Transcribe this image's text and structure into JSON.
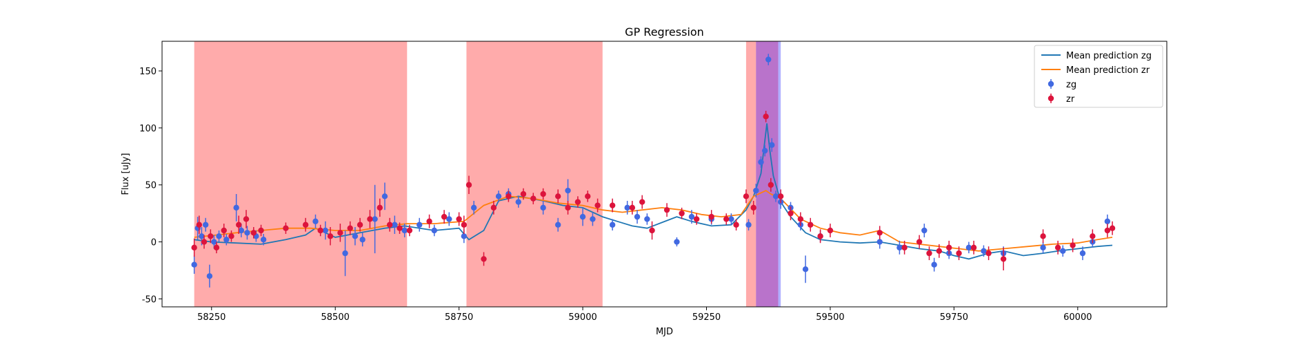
{
  "chart_data": {
    "type": "scatter",
    "title": "GP Regression",
    "xlabel": "MJD",
    "ylabel": "Flux [uJy]",
    "xlim": [
      58150,
      60180
    ],
    "ylim": [
      -57,
      176
    ],
    "xticks": [
      58250,
      58500,
      58750,
      59000,
      59250,
      59500,
      59750,
      60000
    ],
    "yticks": [
      -50,
      0,
      50,
      100,
      150
    ],
    "grid": false,
    "legend_position": "top-right",
    "shaded_regions": [
      {
        "x0": 58215,
        "x1": 58645,
        "color": "#ff0000",
        "opacity": 0.33
      },
      {
        "x0": 58765,
        "x1": 59040,
        "color": "#ff0000",
        "opacity": 0.33
      },
      {
        "x0": 59330,
        "x1": 59350,
        "color": "#ff0000",
        "opacity": 0.33
      },
      {
        "x0": 59350,
        "x1": 59395,
        "color": "#8000a0",
        "opacity": 0.55
      },
      {
        "x0": 59395,
        "x1": 59400,
        "color": "#7070ff",
        "opacity": 0.55
      }
    ],
    "series": [
      {
        "name": "Mean prediction zg",
        "kind": "line",
        "color": "#1f77b4",
        "x": [
          58215,
          58250,
          58300,
          58350,
          58400,
          58440,
          58460,
          58500,
          58550,
          58600,
          58640,
          58700,
          58750,
          58770,
          58800,
          58830,
          58870,
          58920,
          58960,
          59000,
          59040,
          59070,
          59100,
          59130,
          59160,
          59190,
          59220,
          59260,
          59300,
          59330,
          59345,
          59360,
          59372,
          59378,
          59385,
          59400,
          59420,
          59450,
          59480,
          59520,
          59560,
          59600,
          59640,
          59680,
          59720,
          59750,
          59780,
          59820,
          59850,
          59890,
          59930,
          59960,
          60000,
          60040,
          60070
        ],
        "y": [
          2,
          0,
          -1,
          -2,
          2,
          6,
          12,
          4,
          8,
          12,
          14,
          10,
          12,
          2,
          10,
          36,
          40,
          36,
          32,
          30,
          22,
          18,
          14,
          12,
          17,
          22,
          18,
          14,
          15,
          28,
          40,
          60,
          104,
          80,
          58,
          35,
          22,
          8,
          2,
          0,
          -1,
          0,
          -3,
          -6,
          -8,
          -12,
          -15,
          -10,
          -8,
          -12,
          -10,
          -8,
          -6,
          -4,
          -3
        ]
      },
      {
        "name": "Mean prediction zr",
        "kind": "line",
        "color": "#ff7f0e",
        "x": [
          58215,
          58260,
          58300,
          58350,
          58400,
          58450,
          58500,
          58550,
          58600,
          58645,
          58700,
          58760,
          58800,
          58850,
          58900,
          58950,
          59000,
          59040,
          59080,
          59120,
          59160,
          59200,
          59240,
          59280,
          59320,
          59345,
          59370,
          59380,
          59400,
          59440,
          59480,
          59520,
          59560,
          59600,
          59640,
          59680,
          59720,
          59760,
          59800,
          59850,
          59900,
          59950,
          60000,
          60040,
          60070
        ],
        "y": [
          4,
          6,
          8,
          10,
          12,
          12,
          10,
          10,
          14,
          16,
          16,
          18,
          32,
          40,
          38,
          34,
          32,
          28,
          26,
          28,
          30,
          28,
          24,
          22,
          24,
          40,
          45,
          42,
          38,
          20,
          12,
          8,
          6,
          10,
          0,
          -2,
          -4,
          -6,
          -8,
          -6,
          -4,
          -2,
          -1,
          2,
          4
        ]
      },
      {
        "name": "zg",
        "kind": "errorbar",
        "color": "#4169e1",
        "x": [
          58215,
          58222,
          58230,
          58238,
          58246,
          58255,
          58265,
          58280,
          58300,
          58310,
          58322,
          58340,
          58355,
          58460,
          58480,
          58520,
          58540,
          58555,
          58580,
          58600,
          58620,
          58640,
          58670,
          58700,
          58730,
          58760,
          58780,
          58830,
          58850,
          58870,
          58920,
          58950,
          58970,
          59000,
          59020,
          59060,
          59090,
          59110,
          59130,
          59190,
          59220,
          59260,
          59300,
          59335,
          59350,
          59360,
          59368,
          59375,
          59382,
          59390,
          59400,
          59420,
          59440,
          59450,
          59480,
          59600,
          59640,
          59690,
          59710,
          59740,
          59780,
          59810,
          59850,
          59930,
          59970,
          60010,
          60030,
          60060
        ],
        "y": [
          -20,
          12,
          5,
          15,
          -30,
          0,
          5,
          2,
          30,
          10,
          8,
          5,
          2,
          18,
          10,
          -10,
          5,
          2,
          20,
          40,
          15,
          10,
          15,
          10,
          20,
          5,
          30,
          40,
          42,
          35,
          30,
          15,
          45,
          22,
          20,
          15,
          30,
          22,
          20,
          0,
          22,
          20,
          20,
          15,
          45,
          70,
          80,
          160,
          85,
          40,
          35,
          30,
          15,
          -24,
          5,
          0,
          -5,
          10,
          -20,
          -10,
          -5,
          -8,
          -10,
          -5,
          -8,
          -10,
          0,
          18
        ],
        "err": [
          8,
          10,
          8,
          6,
          10,
          6,
          5,
          5,
          12,
          6,
          6,
          5,
          5,
          6,
          8,
          20,
          8,
          6,
          30,
          12,
          8,
          6,
          6,
          5,
          6,
          6,
          6,
          5,
          5,
          5,
          6,
          6,
          10,
          8,
          6,
          5,
          6,
          6,
          5,
          4,
          6,
          5,
          5,
          5,
          6,
          5,
          5,
          5,
          6,
          5,
          6,
          5,
          5,
          12,
          5,
          6,
          6,
          6,
          6,
          5,
          5,
          5,
          6,
          5,
          5,
          6,
          5,
          6
        ]
      },
      {
        "name": "zr",
        "kind": "errorbar",
        "color": "#dc143c",
        "x": [
          58215,
          58225,
          58235,
          58248,
          58260,
          58275,
          58290,
          58305,
          58320,
          58335,
          58350,
          58400,
          58440,
          58470,
          58490,
          58510,
          58530,
          58550,
          58570,
          58590,
          58610,
          58630,
          58650,
          58690,
          58720,
          58750,
          58760,
          58770,
          58800,
          58820,
          58850,
          58880,
          58900,
          58920,
          58950,
          58970,
          58990,
          59010,
          59030,
          59060,
          59100,
          59120,
          59140,
          59170,
          59200,
          59230,
          59260,
          59290,
          59310,
          59330,
          59345,
          59370,
          59380,
          59400,
          59420,
          59440,
          59460,
          59480,
          59500,
          59600,
          59650,
          59680,
          59700,
          59720,
          59740,
          59760,
          59790,
          59820,
          59850,
          59930,
          59960,
          59990,
          60030,
          60060,
          60070
        ],
        "y": [
          -5,
          15,
          0,
          5,
          -5,
          10,
          5,
          15,
          20,
          8,
          10,
          12,
          15,
          10,
          5,
          8,
          12,
          15,
          20,
          30,
          15,
          12,
          10,
          18,
          22,
          20,
          15,
          50,
          -15,
          30,
          40,
          42,
          38,
          42,
          40,
          30,
          35,
          40,
          32,
          32,
          30,
          35,
          10,
          28,
          25,
          20,
          22,
          20,
          15,
          40,
          30,
          110,
          50,
          40,
          25,
          20,
          15,
          5,
          10,
          8,
          -5,
          0,
          -10,
          -8,
          -5,
          -10,
          -5,
          -10,
          -15,
          5,
          -5,
          -3,
          5,
          10,
          12
        ],
        "err": [
          8,
          8,
          6,
          6,
          5,
          6,
          5,
          8,
          8,
          5,
          5,
          5,
          6,
          5,
          8,
          8,
          6,
          6,
          8,
          8,
          6,
          5,
          5,
          6,
          6,
          6,
          8,
          8,
          6,
          6,
          5,
          5,
          5,
          5,
          6,
          6,
          5,
          5,
          6,
          6,
          6,
          6,
          8,
          6,
          5,
          5,
          6,
          5,
          5,
          6,
          6,
          5,
          6,
          6,
          6,
          6,
          6,
          6,
          6,
          6,
          6,
          6,
          6,
          6,
          6,
          6,
          6,
          6,
          10,
          6,
          6,
          6,
          6,
          6,
          6
        ]
      }
    ]
  }
}
